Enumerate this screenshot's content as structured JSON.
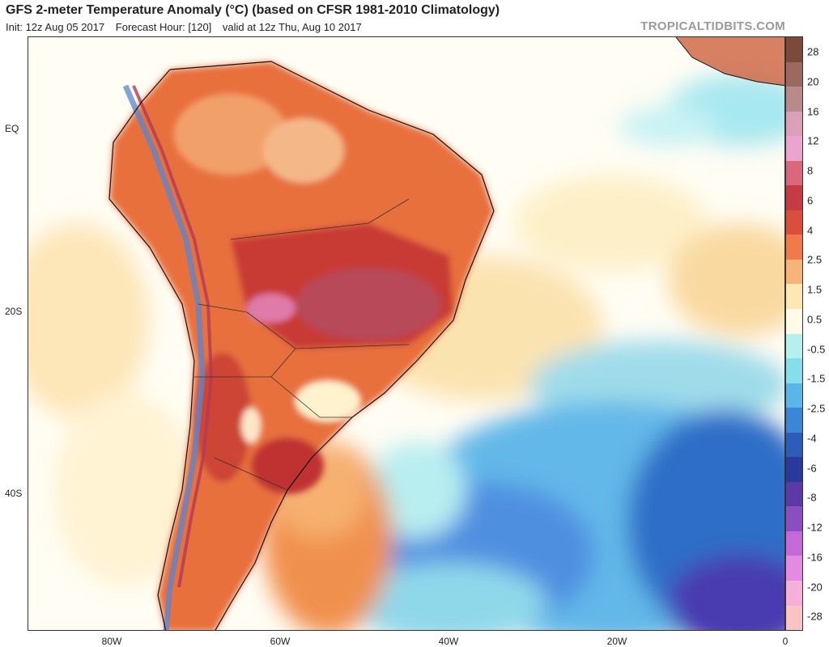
{
  "header": {
    "title": "GFS 2-meter Temperature Anomaly (°C) (based on CFSR 1981-2010 Climatology)",
    "init": "Init: 12z Aug 05 2017",
    "forecast_hour": "Forecast Hour: [120]",
    "valid": "valid at 12z Thu, Aug 10 2017",
    "credit": "TROPICALTIDBITS.COM"
  },
  "map": {
    "lat_labels": [
      "EQ",
      "20S",
      "40S"
    ],
    "lon_labels": [
      "80W",
      "60W",
      "40W",
      "20W",
      "0"
    ]
  },
  "colorbar": {
    "labels": [
      "28",
      "20",
      "16",
      "12",
      "8",
      "6",
      "4",
      "2.5",
      "1.5",
      "0.5",
      "-0.5",
      "-1.5",
      "-2.5",
      "-4",
      "-6",
      "-8",
      "-12",
      "-16",
      "-20",
      "-28"
    ],
    "colors": [
      "#7a4a3a",
      "#9a6a5e",
      "#b98a8a",
      "#d9a0b8",
      "#e9a4cf",
      "#d9687c",
      "#c63a44",
      "#d94f3a",
      "#f07a4a",
      "#f7b479",
      "#fde8b2",
      "#fffbe6",
      "#b3f0ee",
      "#86dfe8",
      "#5ab6e8",
      "#3b86d6",
      "#2a5cb8",
      "#2a3a9a",
      "#5b3aa8",
      "#8a4ec0",
      "#c46ad8",
      "#e48ae0",
      "#f4b0d8",
      "#f8c4c4"
    ]
  }
}
